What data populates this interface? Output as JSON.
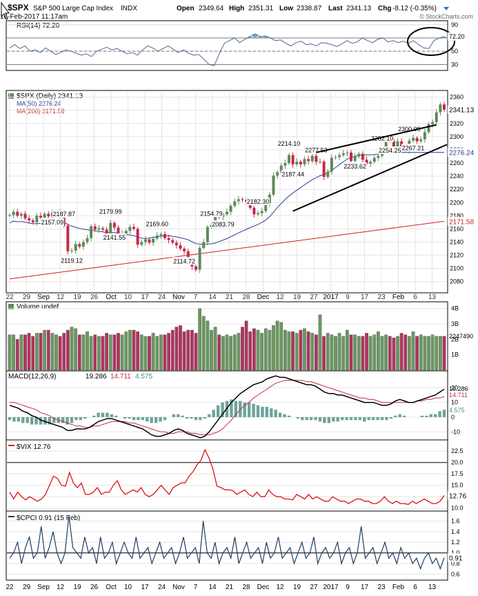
{
  "header": {
    "symbol": "$SPX",
    "name": "S&P 500 Large Cap Index",
    "exchange": "INDX",
    "date": "16-Feb-2017 11:17am",
    "open_label": "Open",
    "open": "2349.64",
    "high_label": "High",
    "high": "2351.31",
    "low_label": "Low",
    "low": "2338.87",
    "last_label": "Last",
    "last": "2341.13",
    "chg_label": "Chg",
    "chg": "-8.12 (-0.35%)",
    "brand": "© StockCharts.com"
  },
  "chart_data": [
    {
      "id": "rsi",
      "type": "line",
      "title": "RSI(14) 72.20",
      "y_ticks": [
        90,
        70,
        50,
        30
      ],
      "ylim": [
        22,
        95
      ],
      "last_label": "72.20",
      "overbought": 70,
      "oversold": 30,
      "values": [
        55,
        60,
        54,
        58,
        50,
        52,
        48,
        55,
        50,
        45,
        48,
        52,
        50,
        47,
        44,
        46,
        42,
        50,
        53,
        56,
        52,
        54,
        50,
        46,
        48,
        44,
        52,
        58,
        55,
        50,
        54,
        58,
        53,
        48,
        52,
        47,
        44,
        45,
        38,
        30,
        28,
        46,
        62,
        66,
        70,
        63,
        68,
        72,
        76,
        72,
        73,
        70,
        66,
        67,
        62,
        58,
        63,
        65,
        60,
        61,
        58,
        63,
        62,
        60,
        57,
        61,
        66,
        62,
        64,
        70,
        66,
        63,
        68,
        70,
        64,
        66,
        63,
        65,
        62,
        66,
        60,
        55,
        54,
        66,
        70,
        72
      ]
    },
    {
      "id": "price",
      "type": "candlestick",
      "title": "$SPX (Daily) 2341.13",
      "ma50_label": "MA(50) 2276.24",
      "ma200_label": "MA(200) 2171.58",
      "y_ticks": [
        2360,
        2340,
        2320,
        2300,
        2280,
        2260,
        2240,
        2220,
        2200,
        2180,
        2160,
        2140,
        2120,
        2100,
        2080
      ],
      "ylim": [
        2065,
        2366
      ],
      "last_price": "2341.13",
      "ma50_last": "2276.24",
      "ma200_last": "2171.58",
      "x_labels": [
        "22",
        "29",
        "Sep",
        "12",
        "19",
        "26",
        "Oct",
        "10",
        "17",
        "24",
        "Nov",
        "7",
        "14",
        "21",
        "28",
        "Dec",
        "12",
        "19",
        "27",
        "2017",
        "9",
        "17",
        "23",
        "Feb",
        "6",
        "13"
      ],
      "closes": [
        2181,
        2186,
        2180,
        2183,
        2176,
        2173,
        2170,
        2180,
        2177,
        2183,
        2179,
        2185,
        2186,
        2179,
        2165,
        2126,
        2127,
        2137,
        2133,
        2140,
        2146,
        2164,
        2159,
        2161,
        2159,
        2151,
        2169,
        2162,
        2152,
        2153,
        2157,
        2163,
        2160,
        2136,
        2140,
        2144,
        2139,
        2145,
        2150,
        2152,
        2146,
        2143,
        2139,
        2135,
        2130,
        2126,
        2111,
        2103,
        2098,
        2131,
        2140,
        2163,
        2166,
        2180,
        2178,
        2182,
        2186,
        2195,
        2202,
        2205,
        2204,
        2201,
        2192,
        2182,
        2184,
        2187,
        2199,
        2212,
        2241,
        2246,
        2256,
        2260,
        2272,
        2258,
        2262,
        2258,
        2266,
        2263,
        2271,
        2262,
        2262,
        2239,
        2247,
        2268,
        2269,
        2272,
        2275,
        2276,
        2263,
        2270,
        2274,
        2265,
        2259,
        2262,
        2268,
        2271,
        2280,
        2295,
        2294,
        2281,
        2293,
        2280,
        2279,
        2294,
        2298,
        2293,
        2296,
        2307,
        2319,
        2322,
        2337,
        2349,
        2341
      ],
      "annotations": [
        {
          "i": 14,
          "label": "2187.87"
        },
        {
          "i": 11,
          "label": "2157.09",
          "below": true
        },
        {
          "i": 16,
          "label": "2119.12",
          "below": true
        },
        {
          "i": 26,
          "label": "2179.99"
        },
        {
          "i": 27,
          "label": "2141.55",
          "below": true
        },
        {
          "i": 38,
          "label": "2169.60"
        },
        {
          "i": 45,
          "label": "2114.72",
          "below": true
        },
        {
          "i": 52,
          "label": "2154.79"
        },
        {
          "i": 55,
          "label": "2083.79",
          "below": true
        },
        {
          "i": 64,
          "label": "2182.30"
        },
        {
          "i": 72,
          "label": "2214.10"
        },
        {
          "i": 73,
          "label": "2187.44",
          "below": true
        },
        {
          "i": 79,
          "label": "2277.53"
        },
        {
          "i": 89,
          "label": "2233.62",
          "below": true
        },
        {
          "i": 96,
          "label": "2282.10"
        },
        {
          "i": 98,
          "label": "2254.25",
          "below": true
        },
        {
          "i": 103,
          "label": "2300.99"
        },
        {
          "i": 104,
          "label": "2267.21",
          "below": true
        }
      ],
      "trendlines": [
        [
          2276,
          2318
        ],
        [
          2187,
          2288
        ]
      ]
    },
    {
      "id": "volume",
      "type": "bar",
      "title": "Volume undef",
      "y_ticks": [
        "4B",
        "3B",
        "2B",
        "1B"
      ],
      "ylim": [
        0,
        4.3
      ],
      "last_label": "2247490",
      "values": [
        2.3,
        2.3,
        2.0,
        2.3,
        2.3,
        2.4,
        2.2,
        2.4,
        2.4,
        2.6,
        2.6,
        2.4,
        2.3,
        2.2,
        2.4,
        2.6,
        2.8,
        2.7,
        2.3,
        2.3,
        2.5,
        2.2,
        2.3,
        2.2,
        2.2,
        2.4,
        2.3,
        2.3,
        2.4,
        2.3,
        2.5,
        2.6,
        2.6,
        2.5,
        2.3,
        2.2,
        2.2,
        2.4,
        2.2,
        2.3,
        2.3,
        2.4,
        2.6,
        2.8,
        2.9,
        2.5,
        2.6,
        2.6,
        2.4,
        4.0,
        3.5,
        3.2,
        2.6,
        2.8,
        2.3,
        2.2,
        2.3,
        2.2,
        2.3,
        2.4,
        2.8,
        3.2,
        2.5,
        2.7,
        2.6,
        2.4,
        2.7,
        2.6,
        2.9,
        3.2,
        3.1,
        2.6,
        2.5,
        2.5,
        2.4,
        2.6,
        2.7,
        2.5,
        2.4,
        2.3,
        3.6,
        2.2,
        2.4,
        2.3,
        2.2,
        2.4,
        2.2,
        2.6,
        2.3,
        2.3,
        2.2,
        2.2,
        2.4,
        2.2,
        2.3,
        2.5,
        2.2,
        2.3,
        2.2,
        2.1,
        2.2,
        2.4,
        2.3,
        2.2,
        2.5,
        2.2,
        2.3,
        2.2,
        2.2,
        2.3,
        2.2,
        2.2,
        2.2
      ]
    },
    {
      "id": "macd",
      "type": "line",
      "title": "MACD(12,26,9)",
      "macd_value": "19.286",
      "signal_value": "14.711",
      "hist_value": "4.575",
      "y_ticks": [
        20,
        10,
        0,
        -10
      ],
      "ylim": [
        -15,
        30
      ],
      "macd": [
        8,
        7,
        6,
        4,
        3,
        1,
        0,
        -2,
        -3,
        -4,
        -5,
        -6,
        -7,
        -9,
        -9,
        -8,
        -8,
        -8,
        -7,
        -5,
        -3,
        -2,
        -1,
        -1,
        -2,
        -3,
        -4,
        -5,
        -6,
        -7,
        -8,
        -10,
        -12,
        -13,
        -13,
        -12,
        -11,
        -9,
        -8,
        -9,
        -11,
        -12,
        -13,
        -14,
        -13,
        -10,
        -6,
        -2,
        2,
        6,
        10,
        13,
        16,
        18,
        20,
        22,
        23,
        24,
        26,
        27,
        28,
        27,
        27,
        26,
        25,
        24,
        23,
        22,
        22,
        21,
        19,
        17,
        16,
        16,
        15,
        15,
        14,
        13,
        12,
        11,
        10,
        10,
        10,
        9,
        8,
        8,
        9,
        11,
        12,
        11,
        10,
        10,
        11,
        12,
        13,
        14,
        15,
        17,
        19
      ],
      "signal": [
        10,
        10,
        9,
        8,
        7,
        6,
        5,
        3,
        2,
        1,
        -1,
        -2,
        -3,
        -4,
        -5,
        -6,
        -6,
        -7,
        -7,
        -6,
        -6,
        -5,
        -4,
        -3,
        -3,
        -3,
        -3,
        -4,
        -4,
        -5,
        -6,
        -7,
        -8,
        -9,
        -10,
        -10,
        -11,
        -11,
        -10,
        -10,
        -10,
        -11,
        -11,
        -12,
        -12,
        -12,
        -11,
        -10,
        -8,
        -5,
        -2,
        2,
        5,
        8,
        10,
        13,
        15,
        17,
        19,
        21,
        23,
        24,
        25,
        25,
        25,
        25,
        25,
        24,
        24,
        23,
        22,
        21,
        20,
        19,
        18,
        17,
        16,
        15,
        14,
        13,
        13,
        12,
        12,
        11,
        10,
        10,
        10,
        10,
        10,
        10,
        10,
        10,
        11,
        11,
        12,
        12,
        13,
        13,
        14,
        15
      ]
    },
    {
      "id": "vix",
      "type": "line",
      "title": "$VIX 12.76",
      "y_ticks": [
        22.5,
        20.0,
        17.5,
        15.0,
        12.5,
        10.0
      ],
      "ylim": [
        9.5,
        24.5
      ],
      "ref_line": 20.0,
      "last_label": "12.76",
      "values": [
        13.5,
        12.0,
        13.5,
        12.5,
        11.8,
        12.5,
        12.0,
        11.5,
        12.0,
        13.0,
        15.0,
        17.0,
        16.5,
        15.0,
        14.8,
        17.8,
        15.5,
        14.5,
        15.5,
        13.0,
        13.0,
        13.5,
        14.5,
        13.0,
        13.5,
        13.5,
        15.0,
        16.0,
        14.0,
        13.0,
        13.5,
        14.0,
        13.5,
        14.5,
        13.0,
        12.5,
        13.0,
        14.0,
        15.0,
        14.0,
        13.0,
        14.5,
        15.0,
        15.5,
        15.5,
        17.0,
        18.0,
        19.5,
        20.5,
        22.8,
        21.0,
        18.5,
        14.8,
        14.5,
        14.0,
        14.0,
        13.8,
        13.0,
        13.5,
        14.0,
        13.0,
        12.5,
        13.5,
        12.5,
        12.5,
        14.0,
        13.0,
        12.5,
        12.5,
        12.0,
        12.0,
        11.8,
        13.0,
        12.5,
        12.0,
        13.0,
        12.0,
        12.5,
        12.0,
        11.5,
        11.5,
        12.5,
        12.0,
        11.5,
        11.5,
        11.0,
        11.5,
        12.0,
        12.0,
        11.5,
        11.5,
        11.0,
        11.0,
        11.5,
        12.5,
        11.5,
        11.0,
        11.5,
        11.0,
        11.0,
        10.8,
        11.5,
        11.0,
        11.5,
        12.0,
        11.5,
        11.0,
        11.0,
        11.5,
        12.76
      ]
    },
    {
      "id": "cpci",
      "type": "line",
      "title": "$CPCI 0.91 (15 Feb)",
      "y_ticks": [
        1.6,
        1.4,
        1.2,
        1.0,
        0.8,
        0.6
      ],
      "ylim": [
        0.5,
        1.75
      ],
      "ref_line": 1.0,
      "last_label": "0.91",
      "values": [
        0.9,
        1.0,
        1.2,
        0.8,
        1.1,
        1.3,
        0.9,
        1.0,
        1.5,
        0.9,
        1.1,
        1.4,
        1.0,
        0.8,
        1.0,
        1.7,
        1.1,
        1.0,
        0.9,
        1.3,
        1.0,
        1.1,
        0.8,
        1.3,
        0.9,
        1.0,
        1.2,
        0.8,
        1.0,
        1.2,
        1.0,
        0.9,
        1.3,
        0.9,
        1.0,
        1.1,
        0.8,
        1.0,
        1.2,
        0.9,
        1.0,
        1.1,
        0.8,
        1.0,
        1.3,
        0.9,
        1.0,
        1.1,
        0.8,
        1.6,
        1.0,
        0.9,
        1.2,
        0.8,
        1.0,
        1.1,
        0.9,
        1.3,
        0.8,
        1.0,
        1.2,
        0.9,
        1.0,
        1.1,
        0.8,
        1.2,
        0.9,
        1.0,
        1.3,
        0.9,
        1.0,
        1.1,
        0.8,
        1.0,
        1.2,
        0.9,
        1.0,
        1.3,
        0.8,
        1.0,
        1.1,
        0.9,
        1.0,
        1.2,
        0.8,
        1.0,
        1.1,
        0.8,
        1.0,
        1.5,
        0.9,
        1.0,
        1.1,
        0.8,
        1.0,
        1.2,
        0.9,
        1.0,
        0.8,
        1.1,
        0.9,
        1.0,
        0.8,
        0.9,
        0.7,
        0.9,
        1.0,
        0.8,
        0.9,
        0.7,
        0.91
      ]
    }
  ],
  "colors": {
    "up": "#5e8a5a",
    "down": "#c22a4a",
    "ma50": "#2b3f8f",
    "ma200": "#d02020",
    "rsi_fill": "#7fa7c9",
    "vix": "#dd1111",
    "cpci": "#1c3b63",
    "volume_up": "#6a9860",
    "volume_down": "#b0345e",
    "macd_hist": "#6fa39a",
    "grid": "#e4e4e4"
  },
  "icons": {
    "cursor": "hand-cursor-icon",
    "dropdown": "chevron-down-icon"
  }
}
